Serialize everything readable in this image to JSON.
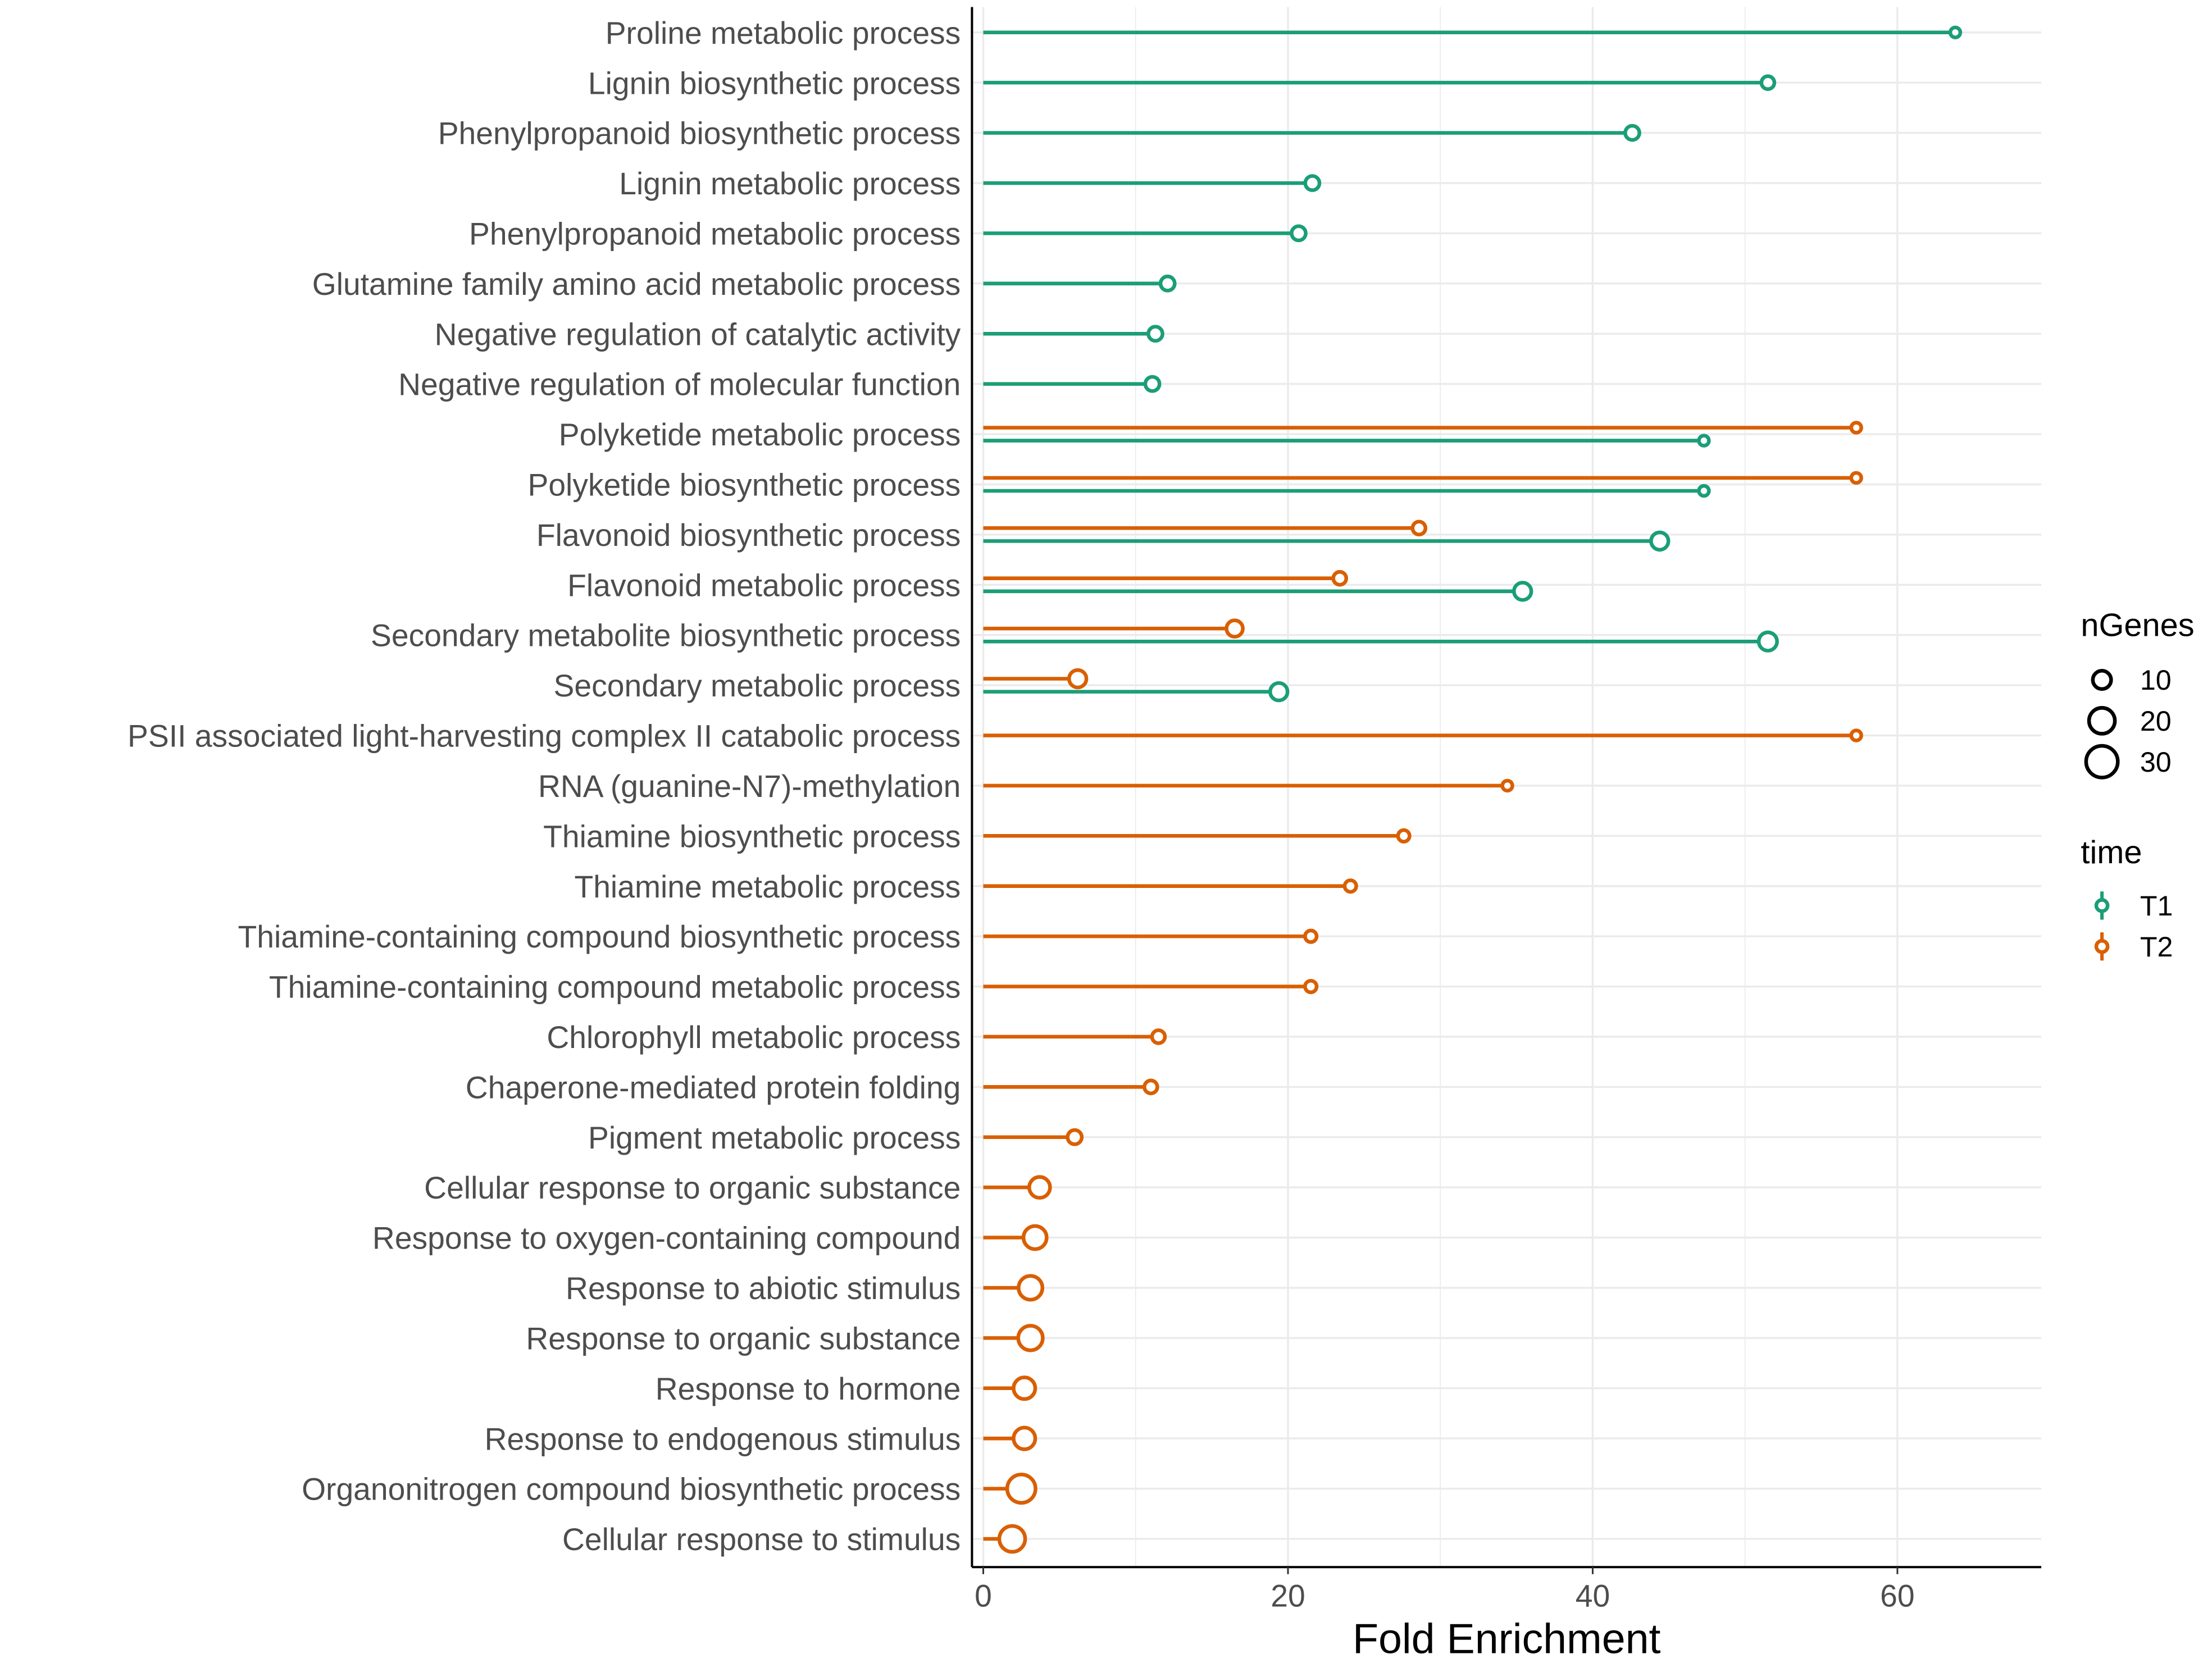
{
  "chart_data": {
    "type": "lollipop",
    "title": "",
    "xlabel": "Fold Enrichment",
    "ylabel": "",
    "xlim": [
      0,
      69.5
    ],
    "xticks": [
      0,
      20,
      40,
      60
    ],
    "grid": true,
    "categories": [
      "Proline metabolic process",
      "Lignin biosynthetic process",
      "Phenylpropanoid biosynthetic process",
      "Lignin metabolic process",
      "Phenylpropanoid metabolic process",
      "Glutamine family amino acid metabolic process",
      "Negative regulation of catalytic activity",
      "Negative regulation of molecular function",
      "Polyketide metabolic process",
      "Polyketide biosynthetic process",
      "Flavonoid biosynthetic process",
      "Flavonoid metabolic process",
      "Secondary metabolite biosynthetic process",
      "Secondary metabolic process",
      "PSII associated light-harvesting complex II catabolic process",
      "RNA (guanine-N7)-methylation",
      "Thiamine biosynthetic process",
      "Thiamine metabolic process",
      "Thiamine-containing compound biosynthetic process",
      "Thiamine-containing compound metabolic process",
      "Chlorophyll metabolic process",
      "Chaperone-mediated protein folding",
      "Pigment metabolic process",
      "Cellular response to organic substance",
      "Response to oxygen-containing compound",
      "Response to abiotic stimulus",
      "Response to organic substance",
      "Response to hormone",
      "Response to endogenous stimulus",
      "Organonitrogen compound biosynthetic process",
      "Cellular response to stimulus"
    ],
    "series": [
      {
        "name": "T1",
        "color": "#1b9e77",
        "values": [
          63.8,
          51.5,
          42.6,
          21.6,
          20.7,
          12.1,
          11.3,
          11.1,
          47.3,
          47.3,
          44.4,
          35.4,
          51.5,
          19.4,
          null,
          null,
          null,
          null,
          null,
          null,
          null,
          null,
          null,
          null,
          null,
          null,
          null,
          null,
          null,
          null,
          null
        ],
        "nGenes": [
          3,
          5,
          6,
          6,
          6,
          6,
          6,
          6,
          3,
          3,
          9,
          9,
          10,
          9,
          null,
          null,
          null,
          null,
          null,
          null,
          null,
          null,
          null,
          null,
          null,
          null,
          null,
          null,
          null,
          null,
          null
        ]
      },
      {
        "name": "T2",
        "color": "#d95f02",
        "values": [
          null,
          null,
          null,
          null,
          null,
          null,
          null,
          null,
          57.3,
          57.3,
          28.6,
          23.4,
          16.5,
          6.2,
          57.3,
          34.4,
          27.6,
          24.1,
          21.5,
          21.5,
          11.5,
          11.0,
          6.0,
          3.7,
          3.4,
          3.1,
          3.1,
          2.7,
          2.7,
          2.5,
          1.9
        ],
        "nGenes": [
          null,
          null,
          null,
          null,
          null,
          null,
          null,
          null,
          3,
          3,
          5,
          5,
          8,
          9,
          3,
          3,
          4,
          4,
          4,
          4,
          5,
          5,
          6,
          13,
          16,
          17,
          18,
          14,
          14,
          24,
          20
        ]
      }
    ],
    "legend": {
      "size_title": "nGenes",
      "size_entries": [
        10,
        20,
        30
      ],
      "color_title": "time",
      "color_entries": [
        "T1",
        "T2"
      ],
      "placement": "right"
    }
  }
}
